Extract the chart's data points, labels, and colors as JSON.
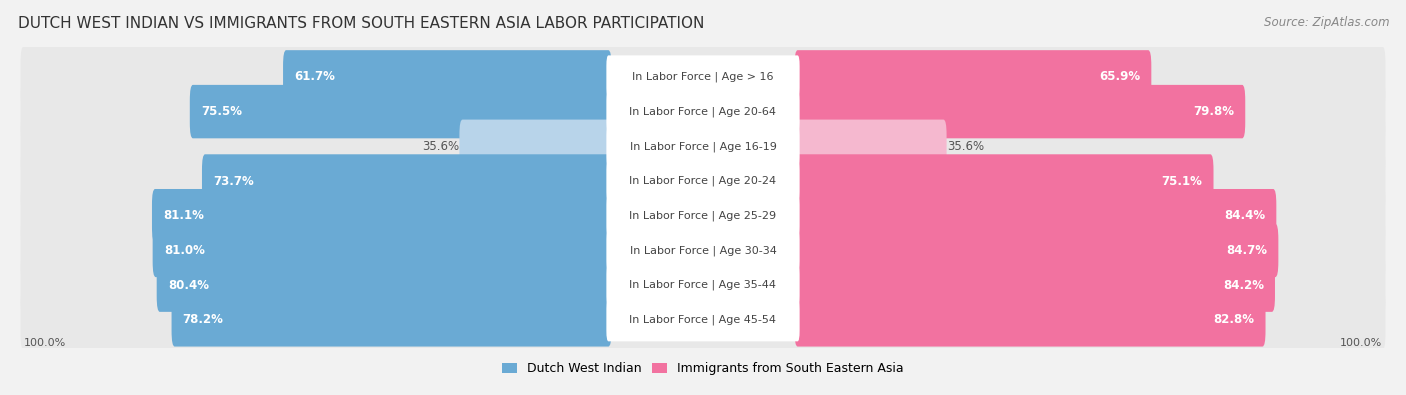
{
  "title": "DUTCH WEST INDIAN VS IMMIGRANTS FROM SOUTH EASTERN ASIA LABOR PARTICIPATION",
  "source": "Source: ZipAtlas.com",
  "categories": [
    "In Labor Force | Age > 16",
    "In Labor Force | Age 20-64",
    "In Labor Force | Age 16-19",
    "In Labor Force | Age 20-24",
    "In Labor Force | Age 25-29",
    "In Labor Force | Age 30-34",
    "In Labor Force | Age 35-44",
    "In Labor Force | Age 45-54"
  ],
  "left_values": [
    61.7,
    75.5,
    35.6,
    73.7,
    81.1,
    81.0,
    80.4,
    78.2
  ],
  "right_values": [
    65.9,
    79.8,
    35.6,
    75.1,
    84.4,
    84.7,
    84.2,
    82.8
  ],
  "left_color": "#6aaad4",
  "left_color_light": "#b8d4ea",
  "right_color": "#f272a0",
  "right_color_light": "#f5b8cf",
  "legend_left": "Dutch West Indian",
  "legend_right": "Immigrants from South Eastern Asia",
  "background_color": "#f2f2f2",
  "row_bg_color": "#e8e8e8",
  "title_fontsize": 11,
  "source_fontsize": 8.5,
  "label_fontsize": 8,
  "value_fontsize": 8.5
}
